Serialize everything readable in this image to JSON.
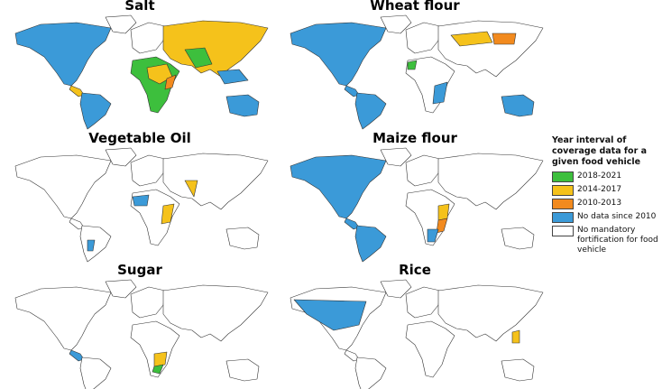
{
  "maps": [
    {
      "title": "Salt"
    },
    {
      "title": "Wheat flour"
    },
    {
      "title": "Vegetable Oil"
    },
    {
      "title": "Maize flour"
    },
    {
      "title": "Sugar"
    },
    {
      "title": "Rice"
    }
  ],
  "legend": {
    "title": "Year interval of coverage data for a given food vehicle",
    "items": [
      {
        "label": "2018-2021",
        "color": "#3dbf3d"
      },
      {
        "label": "2014-2017",
        "color": "#f5c21b"
      },
      {
        "label": "2010-2013",
        "color": "#f28a1e"
      },
      {
        "label": "No data since 2010",
        "color": "#3b9ad8"
      },
      {
        "label": "No mandatory fortification for food vehicle",
        "color": "#ffffff"
      }
    ]
  }
}
